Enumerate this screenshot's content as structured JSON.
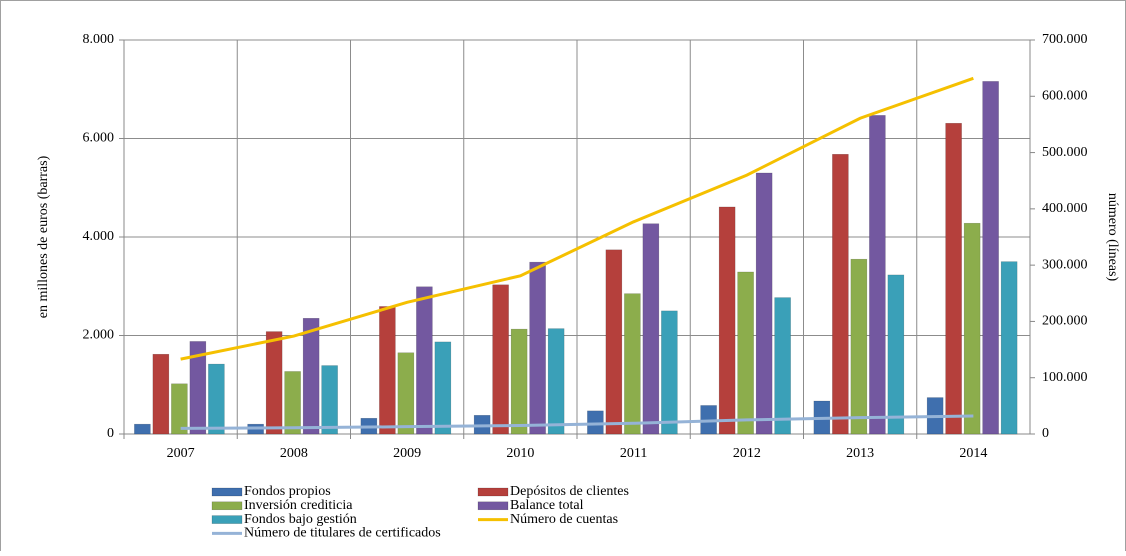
{
  "chart_data": {
    "type": "bar",
    "y_label": "en millones de euros (barras)",
    "y2_label": "número (líneas)",
    "categories": [
      "2007",
      "2008",
      "2009",
      "2010",
      "2011",
      "2012",
      "2013",
      "2014"
    ],
    "ylim": [
      0,
      8000
    ],
    "yticks": [
      0,
      {
        "value": 2000,
        "label": "2.000"
      },
      {
        "value": 4000,
        "label": "4.000"
      },
      {
        "value": 6000,
        "label": "6.000"
      },
      {
        "value": 8000,
        "label": "8.000"
      }
    ],
    "y2lim": [
      0,
      700000
    ],
    "y2ticks": [
      0,
      {
        "value": 100000,
        "label": "100.000"
      },
      {
        "value": 200000,
        "label": "200.000"
      },
      {
        "value": 300000,
        "label": "300.000"
      },
      {
        "value": 400000,
        "label": "400.000"
      },
      {
        "value": 500000,
        "label": "500.000"
      },
      {
        "value": 600000,
        "label": "600.000"
      },
      {
        "value": 700000,
        "label": "700.000"
      }
    ],
    "grid": true,
    "legend": "bottom",
    "series": [
      {
        "name": "Fondos propios",
        "type": "bar",
        "color": "#3f6fae",
        "values": [
          200,
          200,
          320,
          380,
          470,
          580,
          670,
          740
        ]
      },
      {
        "name": "Depósitos de clientes",
        "type": "bar",
        "color": "#b5403c",
        "values": [
          1620,
          2080,
          2590,
          3030,
          3740,
          4610,
          5680,
          6310
        ]
      },
      {
        "name": "Inversión crediticia",
        "type": "bar",
        "color": "#8cad4c",
        "values": [
          1020,
          1270,
          1650,
          2130,
          2850,
          3290,
          3550,
          4280
        ]
      },
      {
        "name": "Balance total",
        "type": "bar",
        "color": "#7358a0",
        "values": [
          1880,
          2350,
          2990,
          3490,
          4270,
          5300,
          6470,
          7160
        ]
      },
      {
        "name": "Fondos bajo gestión",
        "type": "bar",
        "color": "#3aa0b8",
        "values": [
          1420,
          1390,
          1870,
          2140,
          2500,
          2770,
          3230,
          3500
        ]
      },
      {
        "name": "Número de cuentas",
        "type": "line",
        "axis": "y2",
        "color": "#f5c000",
        "values": [
          133000,
          174000,
          234000,
          281000,
          377000,
          460000,
          561000,
          632000
        ]
      },
      {
        "name": "Número de titulares de certificados",
        "type": "line",
        "axis": "y2",
        "color": "#95b3d7",
        "values": [
          10000,
          11000,
          13000,
          15000,
          19000,
          25000,
          29000,
          32000
        ]
      }
    ]
  }
}
